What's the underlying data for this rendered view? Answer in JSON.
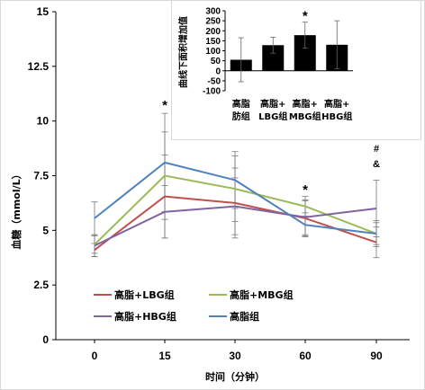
{
  "chart_data": [
    {
      "type": "line",
      "title": "",
      "xlabel": "时间（分钟）",
      "ylabel": "血糖（mmol/L）",
      "x": [
        0,
        15,
        30,
        60,
        90
      ],
      "x_tick_labels": [
        "0",
        "15",
        "30",
        "60",
        "90"
      ],
      "ylim": [
        0,
        15
      ],
      "y_ticks": [
        0,
        2.5,
        5,
        7.5,
        10,
        12.5,
        15
      ],
      "y_tick_labels": [
        "0",
        "2.5",
        "5",
        "7.5",
        "10",
        "12.5",
        "15"
      ],
      "grid": false,
      "legend_position": "bottom-left",
      "series": [
        {
          "name": "高脂+LBG组",
          "color": "#c0504d",
          "values": [
            4.1,
            6.55,
            6.25,
            5.55,
            4.45
          ],
          "errors": [
            0.3,
            1.9,
            1.6,
            0.8,
            0.7
          ]
        },
        {
          "name": "高脂+MBG组",
          "color": "#9bbb59",
          "values": [
            4.35,
            7.5,
            6.9,
            6.1,
            4.85
          ],
          "errors": [
            0.4,
            2.0,
            1.5,
            0.45,
            0.6
          ]
        },
        {
          "name": "高脂+HBG组",
          "color": "#8064a2",
          "values": [
            4.3,
            5.85,
            6.1,
            5.6,
            6.0
          ],
          "errors": [
            0.5,
            1.2,
            1.3,
            0.8,
            1.3
          ]
        },
        {
          "name": "高脂组",
          "color": "#4f81bd",
          "values": [
            5.55,
            8.1,
            7.3,
            5.25,
            4.85
          ],
          "errors": [
            0.75,
            2.25,
            1.3,
            0.55,
            0.5
          ]
        }
      ],
      "annotations": [
        {
          "x": 15,
          "text": "*"
        },
        {
          "x": 60,
          "text": "*"
        },
        {
          "x": 90,
          "text": "+"
        },
        {
          "x": 90,
          "text": "#"
        },
        {
          "x": 90,
          "text": "&"
        }
      ]
    },
    {
      "type": "bar",
      "title": "",
      "ylabel": "曲线下面积增加值",
      "categories": [
        "高脂肪组",
        "高脂+LBG组",
        "高脂+MBG组",
        "高脂+HBG组"
      ],
      "category_lines": [
        [
          "高脂",
          "肪组"
        ],
        [
          "高脂+",
          "LBG组"
        ],
        [
          "高脂+",
          "MBG组"
        ],
        [
          "高脂+",
          "HBG组"
        ]
      ],
      "values": [
        55,
        128,
        178,
        130
      ],
      "errors": [
        110,
        40,
        65,
        120
      ],
      "ylim": [
        -100,
        300
      ],
      "y_ticks": [
        -100,
        -50,
        0,
        50,
        100,
        150,
        200,
        250,
        300
      ],
      "y_tick_labels": [
        "-100",
        "-50",
        "0",
        "50",
        "100",
        "150",
        "200",
        "250",
        "300"
      ],
      "bar_color": "#000000",
      "annotations": [
        {
          "category": "高脂+MBG组",
          "text": "*"
        }
      ]
    }
  ]
}
